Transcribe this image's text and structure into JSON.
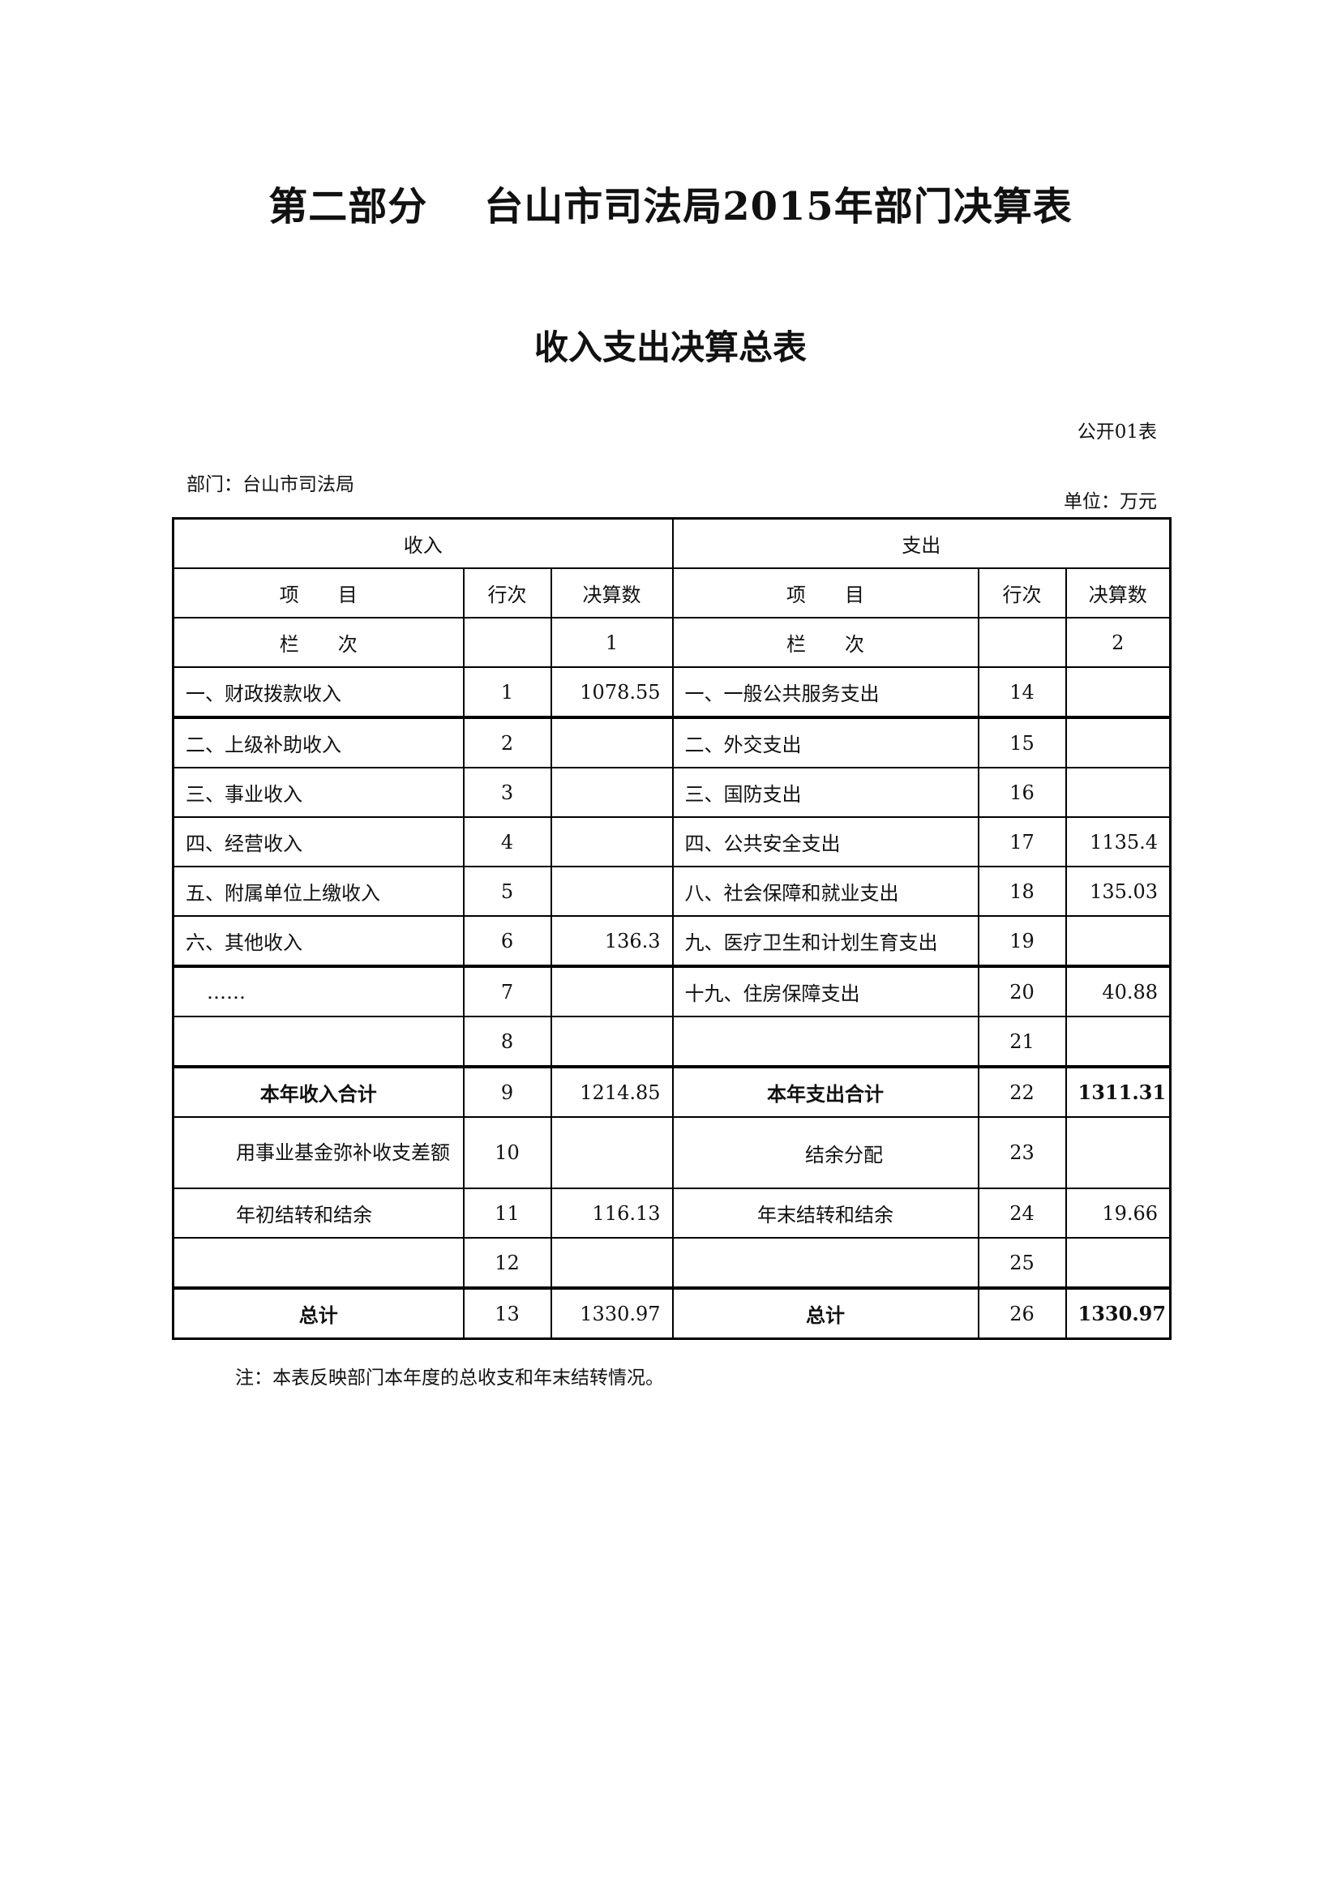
{
  "title_part": "第二部分",
  "title": "台山市司法局2015年部门决算表",
  "subtitle": "收入支出决算总表",
  "form_no": "公开01表",
  "department": "部门：台山市司法局",
  "unit": "单位：万元",
  "table": {
    "income_header": "收入",
    "expense_header": "支出",
    "col_item": "项　　目",
    "col_row": "行次",
    "col_amount": "决算数",
    "col_index_label": "栏　　次",
    "income_col_index": "1",
    "expense_col_index": "2",
    "rows": [
      {
        "in_item": "一、财政拨款收入",
        "in_no": "1",
        "in_amt": "1078.55",
        "ex_item": "一、一般公共服务支出",
        "ex_no": "14",
        "ex_amt": ""
      },
      {
        "in_item": "二、上级补助收入",
        "in_no": "2",
        "in_amt": "",
        "ex_item": "二、外交支出",
        "ex_no": "15",
        "ex_amt": ""
      },
      {
        "in_item": "三、事业收入",
        "in_no": "3",
        "in_amt": "",
        "ex_item": "三、国防支出",
        "ex_no": "16",
        "ex_amt": ""
      },
      {
        "in_item": "四、经营收入",
        "in_no": "4",
        "in_amt": "",
        "ex_item": "四、公共安全支出",
        "ex_no": "17",
        "ex_amt": "1135.4"
      },
      {
        "in_item": "五、附属单位上缴收入",
        "in_no": "5",
        "in_amt": "",
        "ex_item": "八、社会保障和就业支出",
        "ex_no": "18",
        "ex_amt": "135.03"
      },
      {
        "in_item": "六、其他收入",
        "in_no": "6",
        "in_amt": "136.3",
        "ex_item": "九、医疗卫生和计划生育支出",
        "ex_no": "19",
        "ex_amt": ""
      },
      {
        "in_item": "……",
        "in_no": "7",
        "in_amt": "",
        "ex_item": "十九、住房保障支出",
        "ex_no": "20",
        "ex_amt": "40.88"
      },
      {
        "in_item": "",
        "in_no": "8",
        "in_amt": "",
        "ex_item": "",
        "ex_no": "21",
        "ex_amt": ""
      },
      {
        "in_item": "本年收入合计",
        "in_no": "9",
        "in_amt": "1214.85",
        "ex_item": "本年支出合计",
        "ex_no": "22",
        "ex_amt": "1311.31"
      },
      {
        "in_item": "用事业基金弥补收支差额",
        "in_no": "10",
        "in_amt": "",
        "ex_item": "结余分配",
        "ex_no": "23",
        "ex_amt": ""
      },
      {
        "in_item": "年初结转和结余",
        "in_no": "11",
        "in_amt": "116.13",
        "ex_item": "年末结转和结余",
        "ex_no": "24",
        "ex_amt": "19.66"
      },
      {
        "in_item": "",
        "in_no": "12",
        "in_amt": "",
        "ex_item": "",
        "ex_no": "25",
        "ex_amt": ""
      },
      {
        "in_item": "总计",
        "in_no": "13",
        "in_amt": "1330.97",
        "ex_item": "总计",
        "ex_no": "26",
        "ex_amt": "1330.97"
      }
    ]
  },
  "note": "注：本表反映部门本年度的总收支和年末结转情况。"
}
